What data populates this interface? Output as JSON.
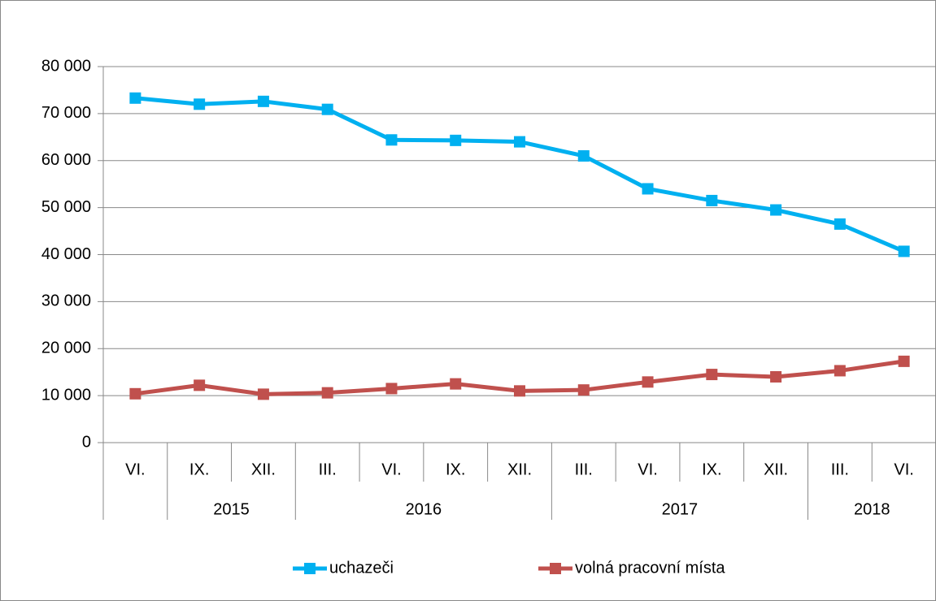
{
  "chart_data": {
    "type": "line",
    "categories": [
      "VI.",
      "IX.",
      "XII.",
      "III.",
      "VI.",
      "IX.",
      "XII.",
      "III.",
      "VI.",
      "IX.",
      "XII.",
      "III.",
      "VI."
    ],
    "years": [
      null,
      "2015",
      "2015",
      "2016",
      "2016",
      "2016",
      "2016",
      "2017",
      "2017",
      "2017",
      "2017",
      "2018",
      "2018"
    ],
    "series": [
      {
        "name": "uchazeči",
        "color": "#00b0f0",
        "values": [
          73300,
          72000,
          72600,
          70900,
          64400,
          64300,
          64000,
          61000,
          54000,
          51500,
          49500,
          46500,
          40700
        ]
      },
      {
        "name": "volná pracovní místa",
        "color": "#c0504d",
        "values": [
          10400,
          12200,
          10300,
          10600,
          11500,
          12500,
          11000,
          11200,
          12900,
          14500,
          14000,
          15300,
          17300
        ]
      }
    ],
    "ylim": [
      0,
      80000
    ],
    "yticks": [
      0,
      {
        "value": 10000,
        "label": "10 000"
      },
      {
        "value": 20000,
        "label": "20 000"
      },
      {
        "value": 30000,
        "label": "30 000"
      },
      {
        "value": 40000,
        "label": "40 000"
      },
      {
        "value": 50000,
        "label": "50 000"
      },
      {
        "value": 60000,
        "label": "60 000"
      },
      {
        "value": 70000,
        "label": "70 000"
      },
      {
        "value": 80000,
        "label": "80 000"
      }
    ],
    "grid": true,
    "legend": "bottom"
  }
}
